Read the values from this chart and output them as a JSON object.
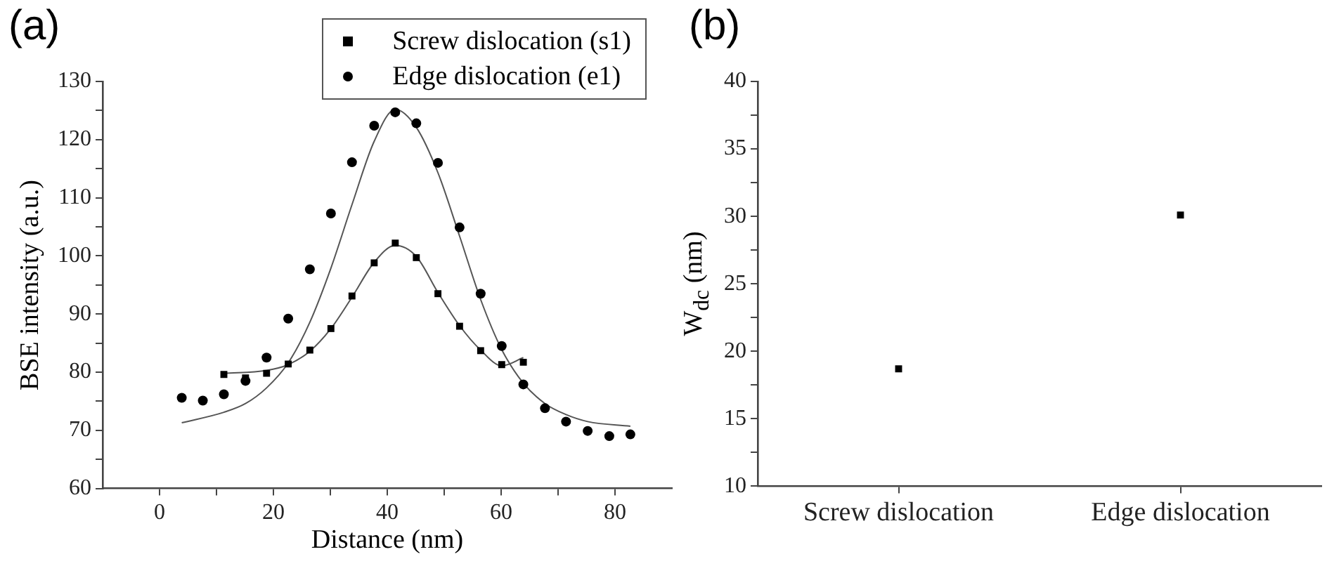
{
  "chart_data": [
    {
      "type": "scatter",
      "title": "(a)",
      "xlabel": "Distance (nm)",
      "ylabel": "BSE intensity (a.u.)",
      "xlim": [
        -10,
        90
      ],
      "ylim": [
        60,
        130
      ],
      "xticks": [
        0,
        {
          "value": 10,
          "label": null
        },
        20,
        {
          "value": 30,
          "label": null
        },
        40,
        {
          "value": 50,
          "label": null
        },
        60,
        {
          "value": 70,
          "label": null
        },
        80
      ],
      "yticks": [
        60,
        {
          "value": 65,
          "label": null
        },
        70,
        {
          "value": 75,
          "label": null
        },
        80,
        {
          "value": 85,
          "label": null
        },
        90,
        {
          "value": 95,
          "label": null
        },
        100,
        {
          "value": 105,
          "label": null
        },
        110,
        {
          "value": 115,
          "label": null
        },
        120,
        {
          "value": 125,
          "label": null
        },
        130
      ],
      "legend": "top right",
      "series": [
        {
          "name": "Screw dislocation (s1)",
          "type": "scatter",
          "marker": "square",
          "color": "#000000",
          "x": [
            11.3,
            15.1,
            18.8,
            22.6,
            26.4,
            30.1,
            33.8,
            37.7,
            41.4,
            45.1,
            48.9,
            52.7,
            56.4,
            60.1,
            63.9
          ],
          "values": [
            79.6,
            79.0,
            79.8,
            81.4,
            83.8,
            87.5,
            93.1,
            98.8,
            102.2,
            99.7,
            93.5,
            87.9,
            83.7,
            81.3,
            81.7
          ]
        },
        {
          "name": "Edge dislocation (e1)",
          "type": "scatter",
          "marker": "circle",
          "color": "#000000",
          "x": [
            3.9,
            7.6,
            11.3,
            15.1,
            18.8,
            22.6,
            26.4,
            30.1,
            33.8,
            37.7,
            41.4,
            45.1,
            48.9,
            52.7,
            56.4,
            60.1,
            63.9,
            67.7,
            71.4,
            75.2,
            79.0,
            82.7
          ],
          "values": [
            75.6,
            75.1,
            76.2,
            78.5,
            82.5,
            89.2,
            97.7,
            107.3,
            116.1,
            122.4,
            124.7,
            122.8,
            116.0,
            104.9,
            93.5,
            84.5,
            77.9,
            73.8,
            71.5,
            69.9,
            69.0,
            69.3
          ]
        },
        {
          "type": "line",
          "marker": "none",
          "color": "#555555",
          "x": [
            11.3,
            18.8,
            22.6,
            26.4,
            30.1,
            33.8,
            37.7,
            41.4,
            45.1,
            48.9,
            52.7,
            56.4,
            60.1,
            63.9
          ],
          "values": [
            79.8,
            80.3,
            81.3,
            83.6,
            87.5,
            92.9,
            98.9,
            101.8,
            99.9,
            93.7,
            88.0,
            83.8,
            81.1,
            82.5
          ]
        },
        {
          "type": "line",
          "marker": "none",
          "color": "#555555",
          "x": [
            3.9,
            11.3,
            15.1,
            18.8,
            22.6,
            26.4,
            30.1,
            33.8,
            37.7,
            41.4,
            45.1,
            48.9,
            52.7,
            56.4,
            60.1,
            63.9,
            67.7,
            71.4,
            75.2,
            82.7
          ],
          "values": [
            71.3,
            73.1,
            74.6,
            77.3,
            81.6,
            88.6,
            97.9,
            108.8,
            119.7,
            125.2,
            122.1,
            114.3,
            103.4,
            92.5,
            83.9,
            78.1,
            74.6,
            72.7,
            71.5,
            70.7
          ]
        }
      ]
    },
    {
      "type": "scatter",
      "title": "(b)",
      "ylabel": "W$_{dc}$ (nm)",
      "categories": [
        "Screw dislocation",
        "Edge dislocation"
      ],
      "ylim": [
        10,
        40
      ],
      "yticks": [
        10,
        {
          "value": 12.5,
          "label": null
        },
        15,
        {
          "value": 17.5,
          "label": null
        },
        20,
        {
          "value": 22.5,
          "label": null
        },
        25,
        {
          "value": 27.5,
          "label": null
        },
        30,
        {
          "value": 32.5,
          "label": null
        },
        35,
        {
          "value": 37.5,
          "label": null
        },
        40
      ],
      "marker": "square",
      "color": "#000000",
      "values": [
        18.7,
        30.1
      ]
    }
  ]
}
